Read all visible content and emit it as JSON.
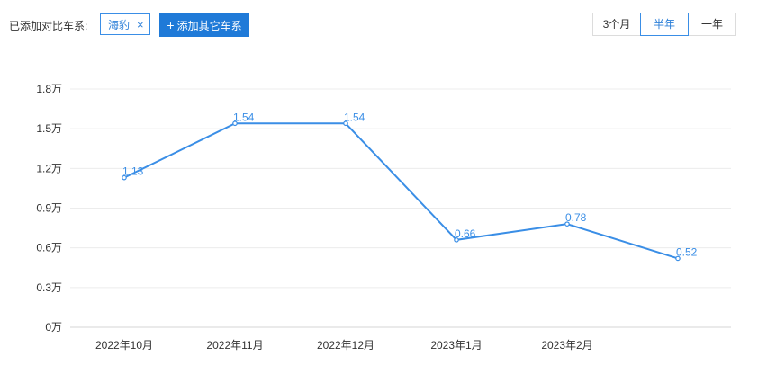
{
  "toolbar": {
    "compare_label": "已添加对比车系:",
    "tag_label": "海豹",
    "tag_close": "×",
    "add_button_icon": "+",
    "add_button_label": "添加其它车系",
    "ranges": [
      "3个月",
      "半年",
      "一年"
    ],
    "active_range": "半年"
  },
  "colors": {
    "line": "#3a8ee6",
    "accent": "#1f7ad8",
    "grid": "#ececec"
  },
  "chart_data": {
    "type": "line",
    "title": "",
    "xlabel": "",
    "ylabel": "",
    "categories": [
      "2022年10月",
      "2022年11月",
      "2022年12月",
      "2023年1月",
      "2023年2月",
      ""
    ],
    "series": [
      {
        "values": [
          1.13,
          1.54,
          1.54,
          0.66,
          0.78,
          0.52
        ]
      }
    ],
    "data_labels": [
      "1.13",
      "1.54",
      "1.54",
      "0.66",
      "0.78",
      "0.52"
    ],
    "yticks": [
      "0万",
      "0.3万",
      "0.6万",
      "0.9万",
      "1.2万",
      "1.5万",
      "1.8万"
    ],
    "ytick_values": [
      0,
      0.3,
      0.6,
      0.9,
      1.2,
      1.5,
      1.8
    ],
    "ylim": [
      0,
      1.8
    ],
    "grid": true
  }
}
